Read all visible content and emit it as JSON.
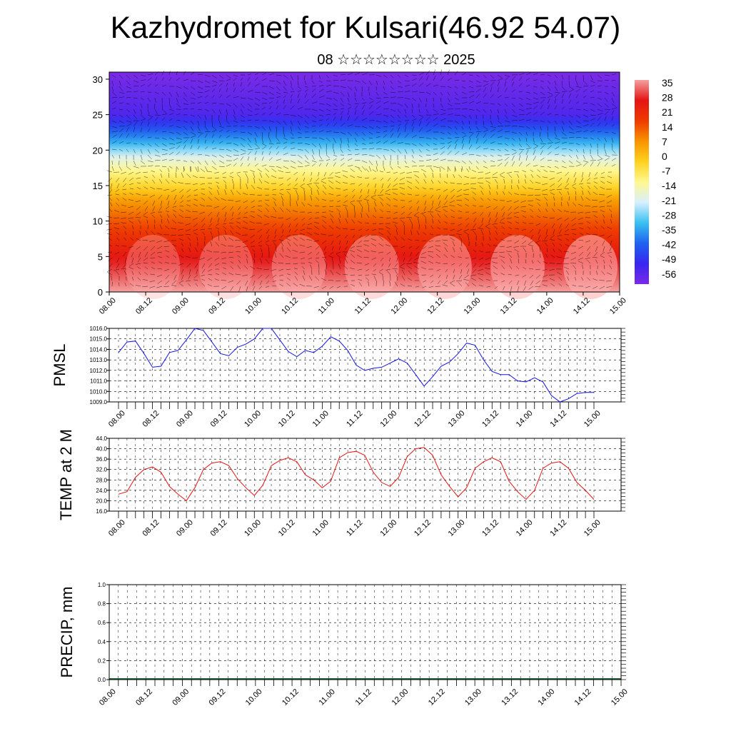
{
  "title": "Kazhydromet for Kulsari(46.92 54.07)",
  "subtitle": "08 ☆☆☆☆☆☆☆☆ 2025",
  "time_labels": [
    "08.00",
    "08.12",
    "09.00",
    "09.12",
    "10.00",
    "10.12",
    "11.00",
    "11.12",
    "12.00",
    "12.12",
    "13.00",
    "13.12",
    "14.00",
    "14.12",
    "15.00"
  ],
  "chart_data": [
    {
      "type": "heatmap",
      "ylim": [
        0,
        31
      ],
      "yticks": [
        "0",
        "5",
        "10",
        "15",
        "20",
        "25",
        "30"
      ],
      "colorbar_labels": [
        "35",
        "28",
        "21",
        "14",
        "7",
        "0",
        "-7",
        "-14",
        "-21",
        "-28",
        "-35",
        "-42",
        "-49",
        "-56"
      ],
      "colorbar_values": [
        35,
        28,
        21,
        14,
        7,
        0,
        -7,
        -14,
        -21,
        -28,
        -35,
        -42,
        -49,
        -56
      ],
      "colormap_stops": [
        "#f4a0a0",
        "#e51414",
        "#ee3a00",
        "#f79400",
        "#ffd11e",
        "#fff890",
        "#d8f0ff",
        "#39c0f0",
        "#1f62f0",
        "#3826f0",
        "#7a2ae6"
      ],
      "level_temperature_profile": {
        "levels": [
          0,
          5,
          10,
          13,
          15,
          17,
          19,
          21,
          25,
          31
        ],
        "temperature": [
          35,
          25,
          14,
          6,
          -3,
          -10,
          -18,
          -30,
          -50,
          -56
        ]
      },
      "overlay": "wind vectors"
    },
    {
      "type": "line",
      "ylabel": "PMSL",
      "ylim": [
        1009.0,
        1016.0
      ],
      "yticks": [
        "1009.0",
        "1010.0",
        "1011.0",
        "1012.0",
        "1013.0",
        "1014.0",
        "1015.0",
        "1016.0"
      ],
      "color": "#1414e6",
      "values": [
        1013.7,
        1014.7,
        1014.8,
        1013.6,
        1012.3,
        1012.4,
        1013.7,
        1013.9,
        1014.9,
        1016.0,
        1015.8,
        1014.7,
        1013.6,
        1013.4,
        1014.2,
        1014.5,
        1015.0,
        1016.0,
        1016.0,
        1014.9,
        1013.8,
        1013.3,
        1013.9,
        1013.7,
        1014.3,
        1015.2,
        1014.8,
        1013.9,
        1012.5,
        1012.0,
        1012.2,
        1012.3,
        1012.7,
        1013.1,
        1012.7,
        1011.6,
        1010.5,
        1011.4,
        1012.4,
        1012.8,
        1013.6,
        1014.6,
        1014.4,
        1013.0,
        1011.9,
        1011.6,
        1011.6,
        1011.0,
        1010.9,
        1011.3,
        1010.9,
        1009.6,
        1009.0,
        1009.3,
        1009.8,
        1009.9,
        1009.9
      ]
    },
    {
      "type": "line",
      "ylabel": "TEMP at 2 M",
      "ylim": [
        16.0,
        44.0
      ],
      "yticks": [
        "16.0",
        "20.0",
        "24.0",
        "28.0",
        "32.0",
        "36.0",
        "40.0",
        "44.0"
      ],
      "color": "#e61414",
      "values": [
        22.5,
        23.5,
        29.0,
        32.0,
        33.0,
        31.0,
        25.5,
        22.5,
        20.0,
        25.0,
        32.0,
        34.5,
        35.0,
        33.5,
        28.5,
        25.0,
        22.0,
        26.0,
        33.5,
        35.5,
        36.5,
        35.0,
        30.0,
        28.0,
        25.0,
        27.5,
        36.5,
        38.5,
        39.0,
        37.5,
        31.0,
        27.0,
        25.5,
        29.0,
        37.0,
        40.0,
        40.5,
        37.5,
        30.0,
        25.5,
        21.5,
        25.0,
        32.5,
        35.0,
        36.5,
        35.0,
        27.5,
        23.5,
        20.5,
        24.0,
        32.5,
        34.5,
        35.0,
        32.5,
        27.0,
        24.0,
        20.5
      ]
    },
    {
      "type": "bar",
      "ylabel": "PRECIP, mm",
      "ylim": [
        0.0,
        1.0
      ],
      "yticks": [
        "0.0",
        "0.2",
        "0.4",
        "0.6",
        "0.8",
        "1.0"
      ],
      "values": [
        0,
        0,
        0,
        0,
        0,
        0,
        0,
        0,
        0,
        0,
        0,
        0,
        0,
        0,
        0,
        0,
        0,
        0,
        0,
        0,
        0,
        0,
        0,
        0,
        0,
        0,
        0,
        0,
        0,
        0
      ]
    }
  ]
}
